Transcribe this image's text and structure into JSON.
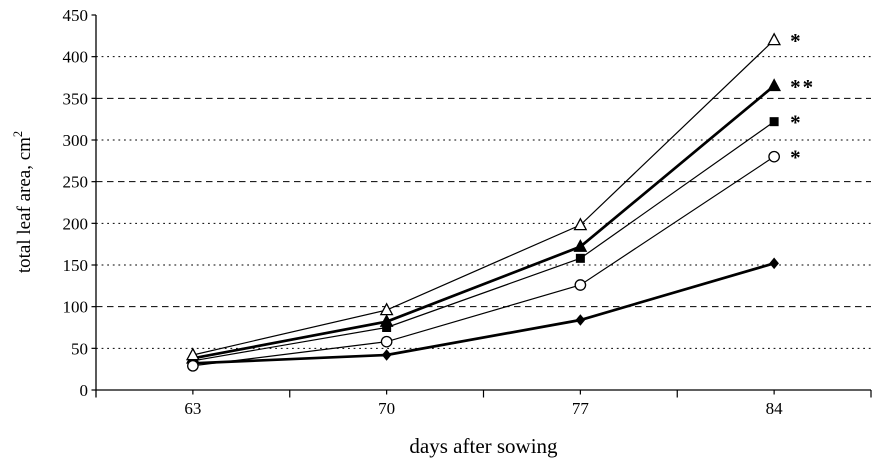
{
  "figure": {
    "background": "#ffffff",
    "foreground": "#000000"
  },
  "chart_data": {
    "type": "line",
    "title": "",
    "xlabel": "days after sowing",
    "ylabel": "total leaf area, cm",
    "ylabel_superscript": "2",
    "x_categories": [
      "63",
      "70",
      "77",
      "84"
    ],
    "xlim_note": "category axis, 4 equal slots",
    "ylim": [
      0,
      450
    ],
    "ytick_step": 50,
    "ytick_labels": [
      "0",
      "50",
      "100",
      "150",
      "200",
      "250",
      "300",
      "350",
      "400",
      "450"
    ],
    "grid": "horizontal",
    "dotted_gridlines": [
      50,
      150,
      200,
      300,
      400
    ],
    "dashed_gridlines": [
      100,
      250,
      350
    ],
    "legend": "none",
    "colors": {
      "line": "#000000",
      "background": "#ffffff"
    },
    "series": [
      {
        "name": "open-triangle",
        "marker": "triangle-open",
        "line_style": "thin",
        "values": [
          42,
          96,
          198,
          420
        ],
        "significance": "*"
      },
      {
        "name": "filled-triangle",
        "marker": "triangle-filled",
        "line_style": "thick",
        "values": [
          38,
          82,
          172,
          365
        ],
        "significance": "**"
      },
      {
        "name": "filled-square",
        "marker": "square-filled",
        "line_style": "thin",
        "values": [
          35,
          75,
          158,
          322
        ],
        "significance": "*"
      },
      {
        "name": "open-circle",
        "marker": "circle-open",
        "line_style": "thin",
        "values": [
          29,
          58,
          126,
          280
        ],
        "significance": "*"
      },
      {
        "name": "filled-diamond",
        "marker": "diamond-filled",
        "line_style": "thick",
        "values": [
          32,
          42,
          84,
          152
        ],
        "significance": ""
      }
    ]
  }
}
